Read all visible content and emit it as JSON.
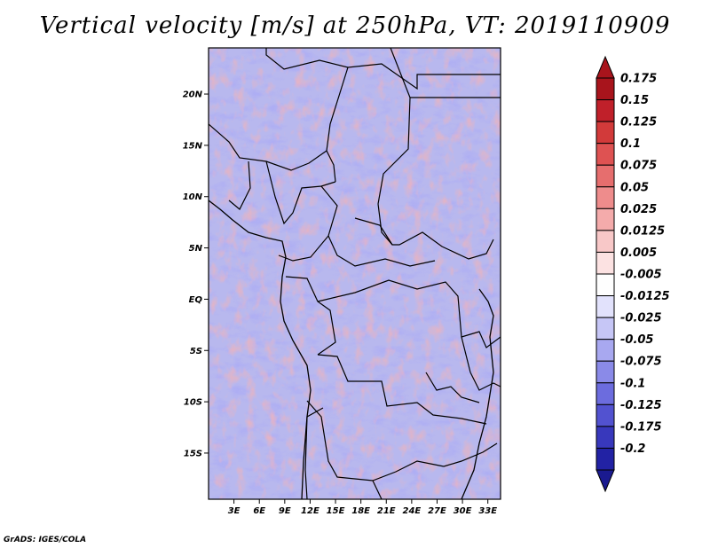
{
  "title": "Vertical velocity [m/s] at 250hPa, VT: 2019110909",
  "credit": "GrADS: IGES/COLA",
  "map": {
    "lon_range": [
      0,
      34.5
    ],
    "lat_range": [
      -19.5,
      24.5
    ],
    "lat_ticks": [
      {
        "value": 20,
        "label": "20N"
      },
      {
        "value": 15,
        "label": "15N"
      },
      {
        "value": 10,
        "label": "10N"
      },
      {
        "value": 5,
        "label": "5N"
      },
      {
        "value": 0,
        "label": "EQ"
      },
      {
        "value": -5,
        "label": "5S"
      },
      {
        "value": -10,
        "label": "10S"
      },
      {
        "value": -15,
        "label": "15S"
      }
    ],
    "lon_ticks": [
      {
        "value": 3,
        "label": "3E"
      },
      {
        "value": 6,
        "label": "6E"
      },
      {
        "value": 9,
        "label": "9E"
      },
      {
        "value": 12,
        "label": "12E"
      },
      {
        "value": 15,
        "label": "15E"
      },
      {
        "value": 18,
        "label": "18E"
      },
      {
        "value": 21,
        "label": "21E"
      },
      {
        "value": 24,
        "label": "24E"
      },
      {
        "value": 27,
        "label": "27E"
      },
      {
        "value": 30,
        "label": "30E"
      },
      {
        "value": 33,
        "label": "33E"
      }
    ]
  },
  "colorbar": {
    "levels": [
      {
        "label": "0.175",
        "color": "#a8141c"
      },
      {
        "label": "0.15",
        "color": "#c0202a"
      },
      {
        "label": "0.125",
        "color": "#d23a3a"
      },
      {
        "label": "0.1",
        "color": "#de5252"
      },
      {
        "label": "0.075",
        "color": "#e66e6e"
      },
      {
        "label": "0.05",
        "color": "#ee8c8c"
      },
      {
        "label": "0.025",
        "color": "#f4abab"
      },
      {
        "label": "0.0125",
        "color": "#f8c8c8"
      },
      {
        "label": "0.005",
        "color": "#fce2e2"
      },
      {
        "label": "-0.005",
        "color": "#fefefe"
      },
      {
        "label": "-0.0125",
        "color": "#e2e2fc"
      },
      {
        "label": "-0.025",
        "color": "#c6c6f6"
      },
      {
        "label": "-0.05",
        "color": "#a8a8f0"
      },
      {
        "label": "-0.075",
        "color": "#8a8ae8"
      },
      {
        "label": "-0.1",
        "color": "#6c6cde"
      },
      {
        "label": "-0.125",
        "color": "#5252d0"
      },
      {
        "label": "-0.175",
        "color": "#3838bc"
      },
      {
        "label": "-0.2",
        "color": "#2222a4"
      }
    ],
    "top_arrow_color": "#a8141c",
    "bottom_arrow_color": "#1a1a90"
  }
}
